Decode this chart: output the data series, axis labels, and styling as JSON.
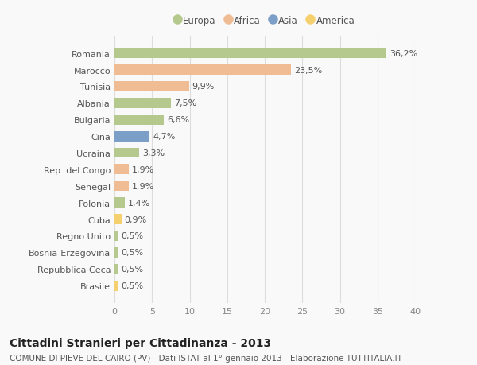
{
  "countries": [
    "Romania",
    "Marocco",
    "Tunisia",
    "Albania",
    "Bulgaria",
    "Cina",
    "Ucraina",
    "Rep. del Congo",
    "Senegal",
    "Polonia",
    "Cuba",
    "Regno Unito",
    "Bosnia-Erzegovina",
    "Repubblica Ceca",
    "Brasile"
  ],
  "values": [
    36.2,
    23.5,
    9.9,
    7.5,
    6.6,
    4.7,
    3.3,
    1.9,
    1.9,
    1.4,
    0.9,
    0.5,
    0.5,
    0.5,
    0.5
  ],
  "labels": [
    "36,2%",
    "23,5%",
    "9,9%",
    "7,5%",
    "6,6%",
    "4,7%",
    "3,3%",
    "1,9%",
    "1,9%",
    "1,4%",
    "0,9%",
    "0,5%",
    "0,5%",
    "0,5%",
    "0,5%"
  ],
  "colors": [
    "#b5c98e",
    "#f0bc94",
    "#f0bc94",
    "#b5c98e",
    "#b5c98e",
    "#7b9fc7",
    "#b5c98e",
    "#f0bc94",
    "#f0bc94",
    "#b5c98e",
    "#f5d06e",
    "#b5c98e",
    "#b5c98e",
    "#b5c98e",
    "#f5d06e"
  ],
  "legend_labels": [
    "Europa",
    "Africa",
    "Asia",
    "America"
  ],
  "legend_colors": [
    "#b5c98e",
    "#f0bc94",
    "#7b9fc7",
    "#f5d06e"
  ],
  "title": "Cittadini Stranieri per Cittadinanza - 2013",
  "subtitle": "COMUNE DI PIEVE DEL CAIRO (PV) - Dati ISTAT al 1° gennaio 2013 - Elaborazione TUTTITALIA.IT",
  "xlim": [
    0,
    40
  ],
  "xticks": [
    0,
    5,
    10,
    15,
    20,
    25,
    30,
    35,
    40
  ],
  "bg_color": "#f9f9f9",
  "grid_color": "#dddddd",
  "bar_height": 0.62,
  "title_fontsize": 10,
  "subtitle_fontsize": 7.5,
  "tick_fontsize": 8,
  "value_fontsize": 8
}
